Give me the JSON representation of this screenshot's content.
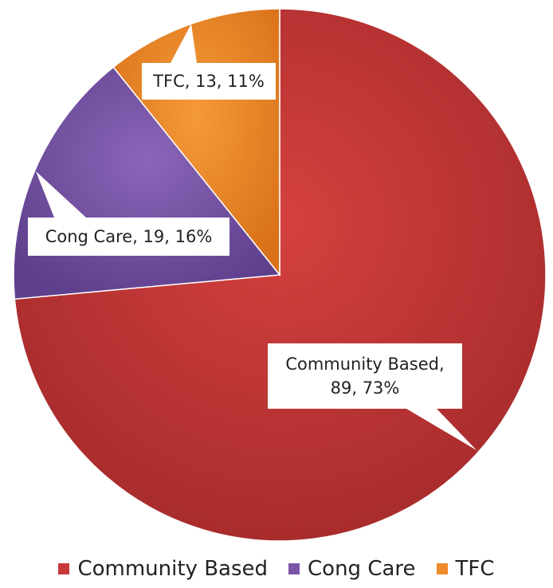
{
  "chart_data": {
    "type": "pie",
    "categories": [
      "Community Based",
      "Cong Care",
      "TFC"
    ],
    "values": [
      89,
      19,
      13
    ],
    "percents": [
      "73%",
      "16%",
      "11%"
    ],
    "data_labels": [
      "Community Based, 89, 73%",
      "Cong Care, 19, 16%",
      "TFC, 13, 11%"
    ],
    "colors": [
      "#c8393a",
      "#7a56a8",
      "#ef8a2a"
    ],
    "legend_position": "bottom",
    "start_angle_deg": 0,
    "direction": "clockwise"
  }
}
